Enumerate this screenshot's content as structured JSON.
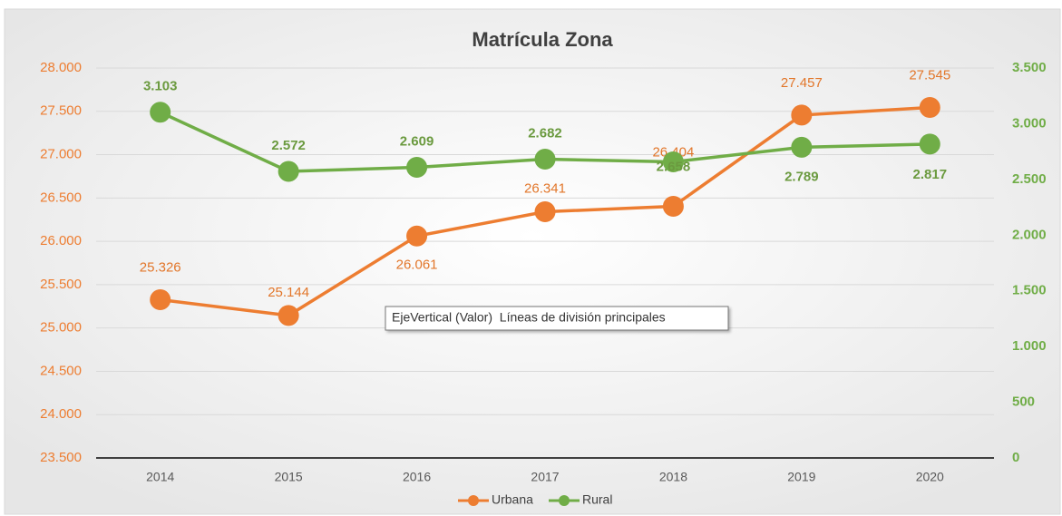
{
  "chart_data": {
    "type": "line",
    "title": "Matrícula Zona",
    "categories": [
      "2014",
      "2015",
      "2016",
      "2017",
      "2018",
      "2019",
      "2020"
    ],
    "series": [
      {
        "name": "Urbana",
        "color": "#ed7d31",
        "values": [
          25326,
          25144,
          26061,
          26341,
          26404,
          27457,
          27545
        ],
        "value_labels": [
          "25.326",
          "25.144",
          "26.061",
          "26.341",
          "26.404",
          "27.457",
          "27.545"
        ]
      },
      {
        "name": "Rural",
        "color": "#70ad47",
        "axis": "y2",
        "values": [
          3103,
          2572,
          2609,
          2682,
          2658,
          2789,
          2817
        ],
        "value_labels": [
          "3.103",
          "2.572",
          "2.609",
          "2.682",
          "2.658",
          "2.789",
          "2.817"
        ]
      }
    ],
    "ylim": [
      23500,
      28000
    ],
    "yticks": [
      {
        "value": 23500,
        "label": "23.500"
      },
      {
        "value": 24000,
        "label": "24.000"
      },
      {
        "value": 24500,
        "label": "24.500"
      },
      {
        "value": 25000,
        "label": "25.000"
      },
      {
        "value": 25500,
        "label": "25.500"
      },
      {
        "value": 26000,
        "label": "26.000"
      },
      {
        "value": 26500,
        "label": "26.500"
      },
      {
        "value": 27000,
        "label": "27.000"
      },
      {
        "value": 27500,
        "label": "27.500"
      },
      {
        "value": 28000,
        "label": "28.000"
      }
    ],
    "y2lim": [
      0,
      3500
    ],
    "y2ticks": [
      0,
      500,
      {
        "value": 1000,
        "label": "1.000"
      },
      {
        "value": 1500,
        "label": "1.500"
      },
      {
        "value": 2000,
        "label": "2.000"
      },
      {
        "value": 2500,
        "label": "2.500"
      },
      {
        "value": 3000,
        "label": "3.000"
      },
      {
        "value": 3500,
        "label": "3.500"
      }
    ],
    "grid": true,
    "legend": "bottom",
    "tooltip": "EjeVertical (Valor)  Líneas de división principales"
  }
}
